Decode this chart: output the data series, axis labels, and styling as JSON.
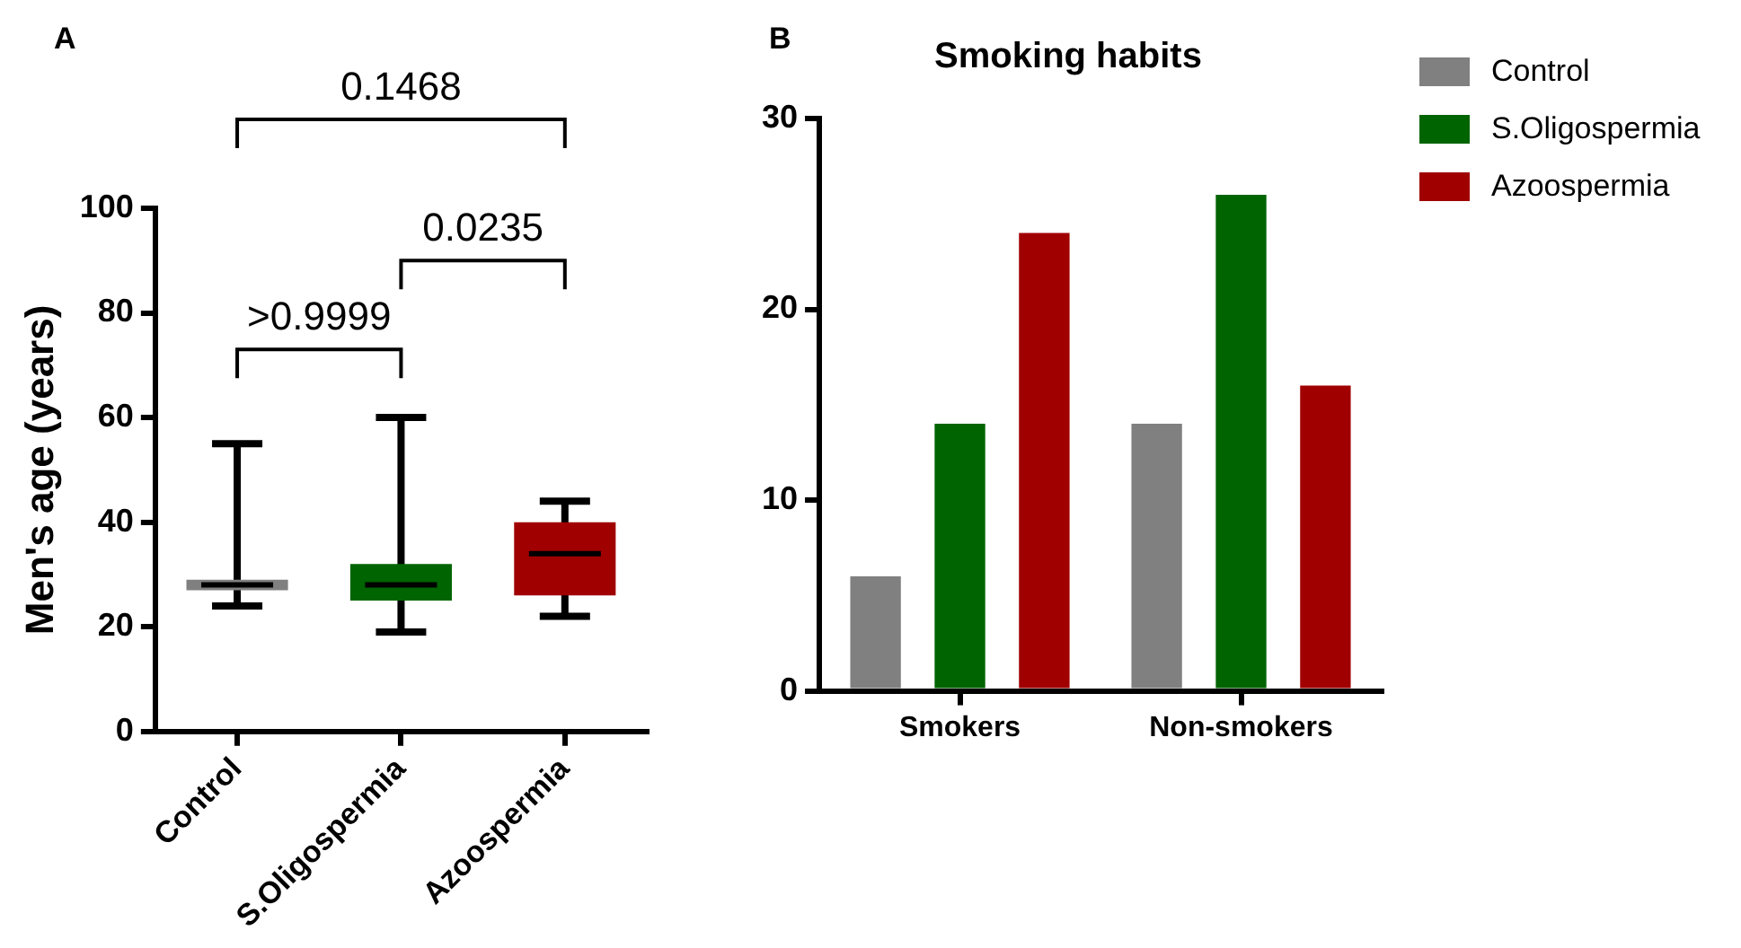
{
  "chart_data": [
    {
      "type": "box",
      "categories": [
        "Control",
        "S.Oligospermia",
        "Azoospermia"
      ],
      "colors": [
        "#808080",
        "#006400",
        "#a00000"
      ],
      "boxes": [
        {
          "low": 24,
          "q1": 27,
          "median": 28,
          "q3": 29,
          "high": 55
        },
        {
          "low": 19,
          "q1": 25,
          "median": 28,
          "q3": 32,
          "high": 60
        },
        {
          "low": 22,
          "q1": 26,
          "median": 34,
          "q3": 40,
          "high": 44
        }
      ],
      "ylabel": "Men's age (years)",
      "ylim": [
        0,
        100
      ],
      "yticks": [
        0,
        20,
        40,
        60,
        80,
        100
      ],
      "grid": false,
      "annotations": [
        "A",
        ">0.9999",
        "0.0235",
        "0.1468"
      ]
    },
    {
      "type": "bar",
      "title": "Smoking habits",
      "categories": [
        "Smokers",
        "Non-smokers"
      ],
      "series": [
        {
          "name": "Control",
          "color": "#808080",
          "values": [
            6,
            14
          ]
        },
        {
          "name": "S.Oligospermia",
          "color": "#006400",
          "values": [
            14,
            26
          ]
        },
        {
          "name": "Azoospermia",
          "color": "#a00000",
          "values": [
            24,
            16
          ]
        }
      ],
      "ylim": [
        0,
        30
      ],
      "yticks": [
        0,
        10,
        20,
        30
      ],
      "grid": false,
      "legend": "right",
      "annotations": [
        "B"
      ]
    }
  ]
}
